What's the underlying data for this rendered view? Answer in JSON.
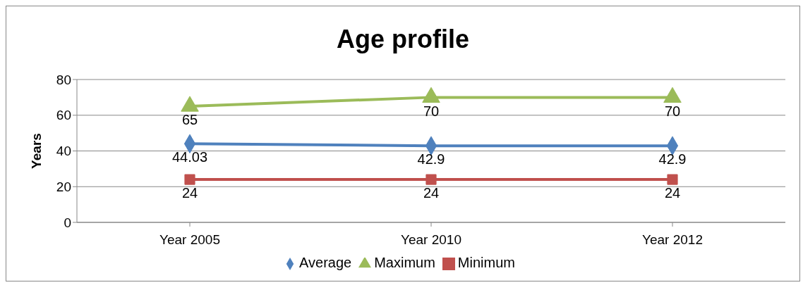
{
  "chart_data": {
    "type": "line",
    "title": "Age profile",
    "ylabel": "Years",
    "categories": [
      "Year 2005",
      "Year 2010",
      "Year 2012"
    ],
    "series": [
      {
        "name": "Average",
        "color": "#4f81bd",
        "marker": "diamond",
        "values": [
          44.03,
          42.9,
          42.9
        ]
      },
      {
        "name": "Minimum",
        "color": "#c0504d",
        "marker": "square",
        "values": [
          24,
          24,
          24
        ]
      },
      {
        "name": "Maximum",
        "color": "#9bbb59",
        "marker": "triangle",
        "values": [
          65,
          70,
          70
        ]
      }
    ],
    "ylim": [
      0,
      80
    ],
    "yticks": [
      0,
      20,
      40,
      60,
      80
    ],
    "grid": "y",
    "legend": "bottom",
    "data_labels": true
  }
}
